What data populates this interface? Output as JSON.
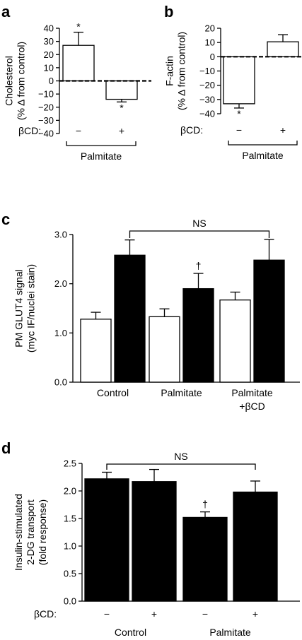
{
  "chart_data": [
    {
      "panel": "a",
      "type": "bar",
      "ylabel": [
        "Cholesterol",
        "(% Δ from control)"
      ],
      "ylim": [
        -40,
        40
      ],
      "yticks": [
        -40,
        -30,
        -20,
        -10,
        0,
        10,
        20,
        30,
        40
      ],
      "zero_line": "dashed",
      "fills": [
        "#ffffff",
        "#ffffff"
      ],
      "values": [
        27,
        -14
      ],
      "errors": [
        10,
        2
      ],
      "marks": [
        "*",
        "*"
      ],
      "factor_label": "βCD:",
      "factor_levels": [
        "−",
        "+"
      ],
      "group_label": "Palmitate"
    },
    {
      "panel": "b",
      "type": "bar",
      "ylabel": [
        "F-actin",
        "(% Δ from control)"
      ],
      "ylim": [
        -40,
        20
      ],
      "yticks": [
        -40,
        -30,
        -20,
        -10,
        0,
        10,
        20
      ],
      "zero_line": "dashed",
      "fills": [
        "#ffffff",
        "#ffffff"
      ],
      "values": [
        -33,
        10.5
      ],
      "errors": [
        3,
        5
      ],
      "marks": [
        "*",
        ""
      ],
      "factor_label": "βCD:",
      "factor_levels": [
        "−",
        "+"
      ],
      "group_label": "Palmitate"
    },
    {
      "panel": "c",
      "type": "bar",
      "ylabel": [
        "PM GLUT4 signal",
        "(myc IF/nuclei stain)"
      ],
      "ylim": [
        0,
        3
      ],
      "yticks": [
        "0.0",
        "1.0",
        "2.0",
        "3.0"
      ],
      "categories": [
        [
          "Control"
        ],
        [
          "Palmitate"
        ],
        [
          "Palmitate",
          "+βCD"
        ]
      ],
      "series": [
        {
          "fill": "#ffffff",
          "values": [
            1.28,
            1.33,
            1.67
          ],
          "errors": [
            0.14,
            0.16,
            0.16
          ]
        },
        {
          "fill": "#000000",
          "values": [
            2.58,
            1.9,
            2.48
          ],
          "errors": [
            0.31,
            0.31,
            0.42
          ]
        }
      ],
      "marks": [
        "",
        "†",
        ""
      ],
      "bracket": {
        "from_category": 0,
        "to_category": 2,
        "label": "NS"
      }
    },
    {
      "panel": "d",
      "type": "bar",
      "ylabel": [
        "Insulin-stimulated",
        "2-DG transport",
        "(fold response)"
      ],
      "ylim": [
        0,
        2.5
      ],
      "yticks": [
        "0.0",
        "0.5",
        "1.0",
        "1.5",
        "2.0",
        "2.5"
      ],
      "fills": [
        "#000000",
        "#000000",
        "#000000",
        "#000000"
      ],
      "values": [
        2.22,
        2.17,
        1.52,
        1.98
      ],
      "errors": [
        0.12,
        0.22,
        0.1,
        0.2
      ],
      "marks": [
        "",
        "",
        "†",
        ""
      ],
      "factor_label": "βCD:",
      "factor_levels": [
        "−",
        "+",
        "−",
        "+"
      ],
      "groups": [
        "Control",
        "Palmitate"
      ],
      "bracket": {
        "from_bar": 0,
        "to_bar": 3,
        "label": "NS"
      }
    }
  ]
}
